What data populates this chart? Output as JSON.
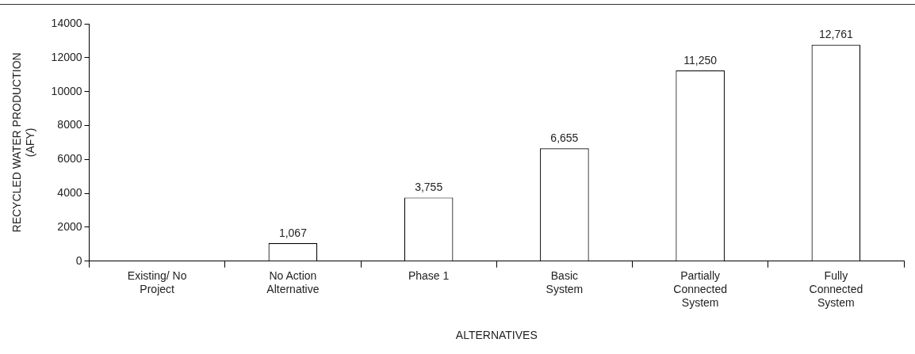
{
  "chart_data": {
    "type": "bar",
    "xlabel": "ALTERNATIVES",
    "ylabel": "RECYCLED WATER PRODUCTION\n(AFY)",
    "categories": [
      "Existing/ No\nProject",
      "No Action\nAlternative",
      "Phase 1",
      "Basic\nSystem",
      "Partially\nConnected\nSystem",
      "Fully\nConnected\nSystem"
    ],
    "values": [
      null,
      1067,
      3755,
      6655,
      11250,
      12761
    ],
    "value_labels": [
      null,
      "1,067",
      "3,755",
      "6,655",
      "11,250",
      "12,761"
    ],
    "color": "#ffffff",
    "ylim": [
      0,
      14000
    ],
    "yticks": [
      0,
      2000,
      4000,
      6000,
      8000,
      10000,
      12000,
      14000
    ],
    "grid": false,
    "legend": false
  }
}
